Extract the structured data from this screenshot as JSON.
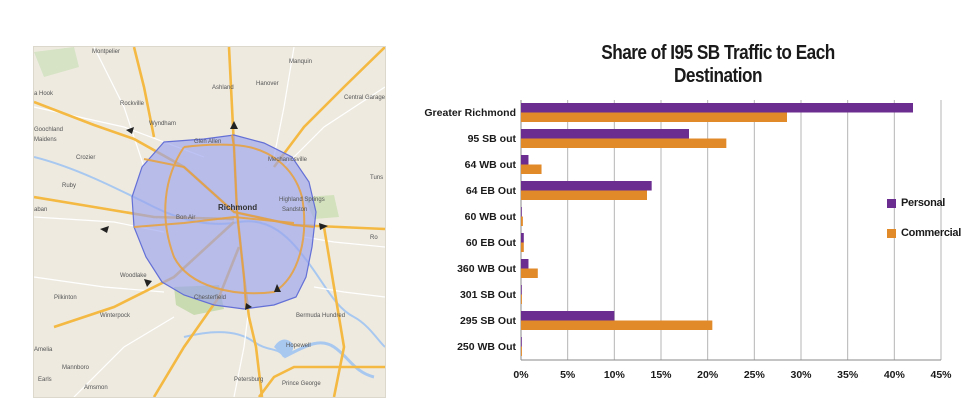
{
  "map": {
    "labels": {
      "montpelier": "Montpelier",
      "manquin": "Manquin",
      "ashland": "Ashland",
      "hanover": "Hanover",
      "central_garage": "Central Garage",
      "rockville": "Rockville",
      "hook": "a Hook",
      "goochland": "Goochland",
      "maidens": "Maidens",
      "wyndham": "Wyndham",
      "glen_allen": "Glen Allen",
      "mechanicsville": "Mechanicsville",
      "tunstall": "Tuns",
      "crozier": "Crozier",
      "ruby": "Ruby",
      "richmond": "Richmond",
      "bon_air": "Bon Air",
      "sandston": "Sandston",
      "highland_springs": "Highland Springs",
      "aban": "aban",
      "pilkinton": "Pilkinton",
      "woodlake": "Woodlake",
      "chesterfield": "Chesterfield",
      "winterpock": "Winterpock",
      "bermuda_hundred": "Bermuda Hundred",
      "hopewell": "Hopewell",
      "amelia": "Amelia",
      "mannboro": "Mannboro",
      "petersburg": "Petersburg",
      "prince_george": "Prince George",
      "earls": "Earls",
      "amsmon": "Amsmon",
      "ro": "Ro"
    }
  },
  "colors": {
    "personal": "#6b2d8f",
    "commercial": "#e08a2a",
    "region_fill": "#9aa3ee",
    "region_stroke": "#6470d6"
  },
  "chart_data": {
    "type": "bar",
    "orientation": "horizontal",
    "title": "Share of I95 SB Traffic to Each Destination",
    "categories": [
      "Greater Richmond",
      "95 SB out",
      "64 WB out",
      "64 EB Out",
      "60 WB out",
      "60 EB Out",
      "360 WB Out",
      "301 SB Out",
      "295 SB Out",
      "250 WB Out"
    ],
    "series": [
      {
        "name": "Personal",
        "color": "#6b2d8f",
        "values": [
          42.0,
          18.0,
          0.8,
          14.0,
          0.05,
          0.3,
          0.8,
          0.05,
          10.0,
          0.05
        ]
      },
      {
        "name": "Commercial",
        "color": "#e08a2a",
        "values": [
          28.5,
          22.0,
          2.2,
          13.5,
          0.2,
          0.3,
          1.8,
          0.1,
          20.5,
          0.1
        ]
      }
    ],
    "x_ticks": [
      "0%",
      "5%",
      "10%",
      "15%",
      "20%",
      "25%",
      "30%",
      "35%",
      "40%",
      "45%"
    ],
    "xlim": [
      0,
      45
    ],
    "grid": true,
    "legend_position": "right"
  }
}
